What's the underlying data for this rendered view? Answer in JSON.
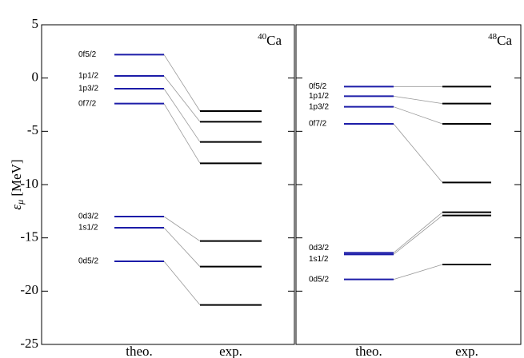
{
  "chart_data": {
    "type": "level",
    "ylabel": "ε",
    "ylabel_sub": "μ",
    "ylabel_unit": "[MeV]",
    "ylim": [
      -25,
      5
    ],
    "yticks": [
      -25,
      -20,
      -15,
      -10,
      -5,
      0,
      5
    ],
    "panels": [
      {
        "title_sup": "40",
        "title": "Ca",
        "categories": [
          "theo.",
          "exp."
        ],
        "levels": [
          "0f5/2",
          "1p1/2",
          "1p3/2",
          "0f7/2",
          "0d3/2",
          "1s1/2",
          "0d5/2"
        ],
        "series": [
          {
            "color": "#1c1ca8",
            "values": [
              2.2,
              0.2,
              -1.0,
              -2.4,
              -13.0,
              -14.05,
              -17.2
            ]
          },
          {
            "color": "#000000",
            "values": [
              -3.1,
              -4.1,
              -6.0,
              -8.0,
              -15.3,
              -17.7,
              -21.3
            ]
          }
        ]
      },
      {
        "title_sup": "48",
        "title": "Ca",
        "categories": [
          "theo.",
          "exp."
        ],
        "levels": [
          "0f5/2",
          "1p1/2",
          "1p3/2",
          "0f7/2",
          "0d3/2",
          "1s1/2",
          "0d5/2"
        ],
        "series": [
          {
            "color": "#1c1ca8",
            "values": [
              -0.8,
              -1.7,
              -2.7,
              -4.3,
              -16.4,
              -16.55,
              -18.9
            ]
          },
          {
            "color": "#000000",
            "values": [
              -0.8,
              -2.4,
              -4.3,
              -9.8,
              -12.6,
              -12.9,
              -17.5
            ]
          }
        ]
      }
    ]
  }
}
